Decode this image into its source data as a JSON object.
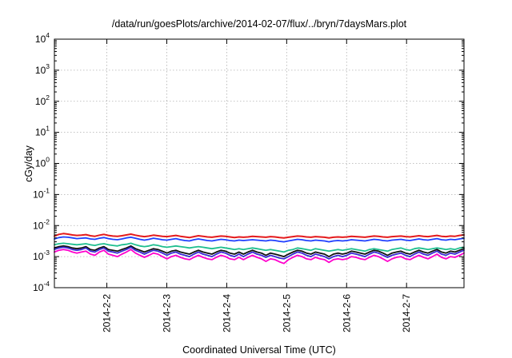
{
  "chart_data": {
    "type": "line",
    "title": "/data/run/goesPlots/archive/2014-02-07/flux/../bryn/7daysMars.plot",
    "xlabel": "Coordinated Universal Time (UTC)",
    "ylabel": "cGy/day",
    "yscale": "log",
    "ylim": [
      0.0001,
      10000
    ],
    "y_ticks": [
      {
        "base": "10",
        "exp": "-4"
      },
      {
        "base": "10",
        "exp": "-3"
      },
      {
        "base": "10",
        "exp": "-2"
      },
      {
        "base": "10",
        "exp": "-1"
      },
      {
        "base": "10",
        "exp": "0"
      },
      {
        "base": "10",
        "exp": "1"
      },
      {
        "base": "10",
        "exp": "2"
      },
      {
        "base": "10",
        "exp": "3"
      },
      {
        "base": "10",
        "exp": "4"
      }
    ],
    "xlim": [
      "2014-02-01 03:00",
      "2014-02-07 23:00"
    ],
    "x_ticks": [
      "2014-2-2",
      "2014-2-3",
      "2014-2-4",
      "2014-2-5",
      "2014-2-6",
      "2014-2-7"
    ],
    "x_tick_dates": [
      "2014-02-02",
      "2014-02-03",
      "2014-02-04",
      "2014-02-05",
      "2014-02-06",
      "2014-02-07"
    ],
    "grid": true,
    "legend": "none",
    "series": [
      {
        "color": "#e41a1c",
        "values": [
          0.0046,
          0.0052,
          0.0055,
          0.0053,
          0.005,
          0.0048,
          0.0049,
          0.0051,
          0.0047,
          0.0045,
          0.0049,
          0.0052,
          0.0048,
          0.0046,
          0.0045,
          0.0047,
          0.005,
          0.0053,
          0.0049,
          0.0046,
          0.0044,
          0.0046,
          0.0049,
          0.0047,
          0.0045,
          0.0044,
          0.0046,
          0.0048,
          0.0045,
          0.0043,
          0.0041,
          0.0044,
          0.0047,
          0.0045,
          0.0043,
          0.0042,
          0.0044,
          0.0046,
          0.0045,
          0.0043,
          0.0041,
          0.0043,
          0.0042,
          0.0043,
          0.0045,
          0.0044,
          0.0043,
          0.0042,
          0.0044,
          0.0043,
          0.0041,
          0.004,
          0.0042,
          0.0044,
          0.0046,
          0.0045,
          0.0043,
          0.0042,
          0.0044,
          0.0043,
          0.0042,
          0.004,
          0.0042,
          0.0043,
          0.0042,
          0.0043,
          0.0045,
          0.0044,
          0.0043,
          0.0042,
          0.0044,
          0.0046,
          0.0045,
          0.0043,
          0.0042,
          0.0044,
          0.0045,
          0.0046,
          0.0044,
          0.0043,
          0.0045,
          0.0047,
          0.0045,
          0.0044,
          0.0046,
          0.0048,
          0.0045,
          0.0044,
          0.0046,
          0.0045,
          0.0048,
          0.005
        ]
      },
      {
        "color": "#1f3fff",
        "values": [
          0.0037,
          0.0041,
          0.0043,
          0.0042,
          0.004,
          0.0038,
          0.0039,
          0.004,
          0.0037,
          0.0036,
          0.0039,
          0.0041,
          0.0038,
          0.0036,
          0.0035,
          0.0037,
          0.004,
          0.0042,
          0.0039,
          0.0036,
          0.0034,
          0.0036,
          0.0039,
          0.0037,
          0.0035,
          0.0034,
          0.0036,
          0.0038,
          0.0035,
          0.0033,
          0.0032,
          0.0035,
          0.0037,
          0.0035,
          0.0033,
          0.0032,
          0.0034,
          0.0036,
          0.0035,
          0.0033,
          0.0032,
          0.0034,
          0.0033,
          0.0034,
          0.0035,
          0.0034,
          0.0033,
          0.0032,
          0.0034,
          0.0033,
          0.0031,
          0.003,
          0.0032,
          0.0034,
          0.0036,
          0.0035,
          0.0033,
          0.0032,
          0.0034,
          0.0033,
          0.0032,
          0.003,
          0.0032,
          0.0033,
          0.0032,
          0.0033,
          0.0035,
          0.0034,
          0.0033,
          0.0032,
          0.0034,
          0.0036,
          0.0035,
          0.0033,
          0.0032,
          0.0034,
          0.0035,
          0.0036,
          0.0034,
          0.0033,
          0.0035,
          0.0037,
          0.0035,
          0.0034,
          0.0036,
          0.0038,
          0.0035,
          0.0034,
          0.0036,
          0.0035,
          0.0037,
          0.0039
        ]
      },
      {
        "color": "#1fbf8f",
        "values": [
          0.0024,
          0.0026,
          0.0027,
          0.0026,
          0.0025,
          0.0024,
          0.0025,
          0.0026,
          0.0024,
          0.0023,
          0.0025,
          0.0026,
          0.0024,
          0.0023,
          0.0022,
          0.0024,
          0.0025,
          0.0027,
          0.0024,
          0.0022,
          0.0021,
          0.0022,
          0.0024,
          0.0023,
          0.0021,
          0.002,
          0.0021,
          0.0022,
          0.0021,
          0.002,
          0.0019,
          0.002,
          0.0021,
          0.002,
          0.0019,
          0.0018,
          0.0019,
          0.002,
          0.0019,
          0.0018,
          0.0017,
          0.0018,
          0.0017,
          0.0018,
          0.0019,
          0.0018,
          0.0017,
          0.0016,
          0.0017,
          0.0016,
          0.0015,
          0.0014,
          0.0016,
          0.0017,
          0.0019,
          0.0018,
          0.0017,
          0.0016,
          0.0018,
          0.0017,
          0.0016,
          0.0015,
          0.0016,
          0.0017,
          0.0016,
          0.0017,
          0.0018,
          0.0017,
          0.0016,
          0.0015,
          0.0017,
          0.0018,
          0.0017,
          0.0016,
          0.0015,
          0.0017,
          0.0018,
          0.0019,
          0.0017,
          0.0016,
          0.0018,
          0.0019,
          0.0018,
          0.0017,
          0.0018,
          0.0019,
          0.0018,
          0.0017,
          0.0018,
          0.0017,
          0.0019,
          0.002
        ]
      },
      {
        "color": "#111111",
        "values": [
          0.0019,
          0.0021,
          0.0022,
          0.0021,
          0.0019,
          0.0018,
          0.0019,
          0.0021,
          0.0017,
          0.0016,
          0.0019,
          0.0021,
          0.0017,
          0.0016,
          0.0015,
          0.0017,
          0.0019,
          0.0022,
          0.0018,
          0.0016,
          0.0014,
          0.0016,
          0.0018,
          0.0017,
          0.0015,
          0.0013,
          0.0015,
          0.0016,
          0.0014,
          0.0013,
          0.0012,
          0.0014,
          0.0016,
          0.0014,
          0.0013,
          0.0012,
          0.0014,
          0.0016,
          0.0015,
          0.0013,
          0.0012,
          0.0014,
          0.0012,
          0.0014,
          0.0016,
          0.0014,
          0.0013,
          0.0011,
          0.0013,
          0.0012,
          0.0011,
          0.001,
          0.0012,
          0.0014,
          0.0016,
          0.0015,
          0.0013,
          0.0012,
          0.0014,
          0.0013,
          0.0012,
          0.001,
          0.0012,
          0.0013,
          0.0012,
          0.0013,
          0.0015,
          0.0014,
          0.0013,
          0.0012,
          0.0014,
          0.0016,
          0.0015,
          0.0013,
          0.0011,
          0.0013,
          0.0014,
          0.0015,
          0.0013,
          0.0012,
          0.0014,
          0.0016,
          0.0014,
          0.0013,
          0.0015,
          0.0017,
          0.0014,
          0.0013,
          0.0015,
          0.0014,
          0.0016,
          0.0018
        ]
      },
      {
        "color": "#3a2bd6",
        "values": [
          0.0017,
          0.0019,
          0.002,
          0.0019,
          0.0017,
          0.0016,
          0.0017,
          0.0019,
          0.0015,
          0.0014,
          0.0017,
          0.0019,
          0.0015,
          0.0014,
          0.0013,
          0.0015,
          0.0017,
          0.002,
          0.0016,
          0.0014,
          0.0012,
          0.0014,
          0.0016,
          0.0015,
          0.0013,
          0.0011,
          0.0013,
          0.0014,
          0.0012,
          0.0011,
          0.001,
          0.0012,
          0.0014,
          0.0012,
          0.0011,
          0.001,
          0.0012,
          0.0014,
          0.0013,
          0.0011,
          0.001,
          0.0012,
          0.001,
          0.0012,
          0.0014,
          0.0012,
          0.0011,
          0.00095,
          0.0011,
          0.001,
          0.0009,
          0.00085,
          0.001,
          0.0012,
          0.0014,
          0.0013,
          0.0011,
          0.001,
          0.0012,
          0.0011,
          0.001,
          0.00085,
          0.001,
          0.0011,
          0.001,
          0.0011,
          0.0013,
          0.0012,
          0.0011,
          0.001,
          0.0012,
          0.0014,
          0.0013,
          0.0011,
          0.00095,
          0.0011,
          0.0012,
          0.0013,
          0.0011,
          0.001,
          0.0012,
          0.0014,
          0.0012,
          0.0011,
          0.0013,
          0.0015,
          0.0012,
          0.0011,
          0.0013,
          0.0012,
          0.0014,
          0.0016
        ]
      },
      {
        "color": "#ff00cc",
        "values": [
          0.0014,
          0.0016,
          0.0017,
          0.0016,
          0.0014,
          0.0013,
          0.0014,
          0.0015,
          0.0012,
          0.0011,
          0.0014,
          0.0016,
          0.0012,
          0.0011,
          0.001,
          0.0012,
          0.0014,
          0.0017,
          0.0013,
          0.0011,
          0.00095,
          0.0011,
          0.0013,
          0.0012,
          0.001,
          0.00085,
          0.001,
          0.0011,
          0.00095,
          0.00085,
          0.0008,
          0.00095,
          0.0011,
          0.00095,
          0.00085,
          0.0008,
          0.00095,
          0.0011,
          0.001,
          0.00085,
          0.0008,
          0.00095,
          0.0008,
          0.00095,
          0.0011,
          0.00095,
          0.00085,
          0.0007,
          0.00085,
          0.0008,
          0.00068,
          0.0006,
          0.0008,
          0.00095,
          0.0011,
          0.001,
          0.00085,
          0.0008,
          0.00095,
          0.00085,
          0.0008,
          0.00065,
          0.0008,
          0.00085,
          0.0008,
          0.00085,
          0.001,
          0.00095,
          0.00085,
          0.0008,
          0.00095,
          0.0011,
          0.001,
          0.00085,
          0.0007,
          0.00085,
          0.00095,
          0.001,
          0.00085,
          0.0008,
          0.00095,
          0.0011,
          0.00095,
          0.00085,
          0.001,
          0.0012,
          0.00095,
          0.00085,
          0.001,
          0.00095,
          0.0011,
          0.0013
        ]
      }
    ]
  }
}
